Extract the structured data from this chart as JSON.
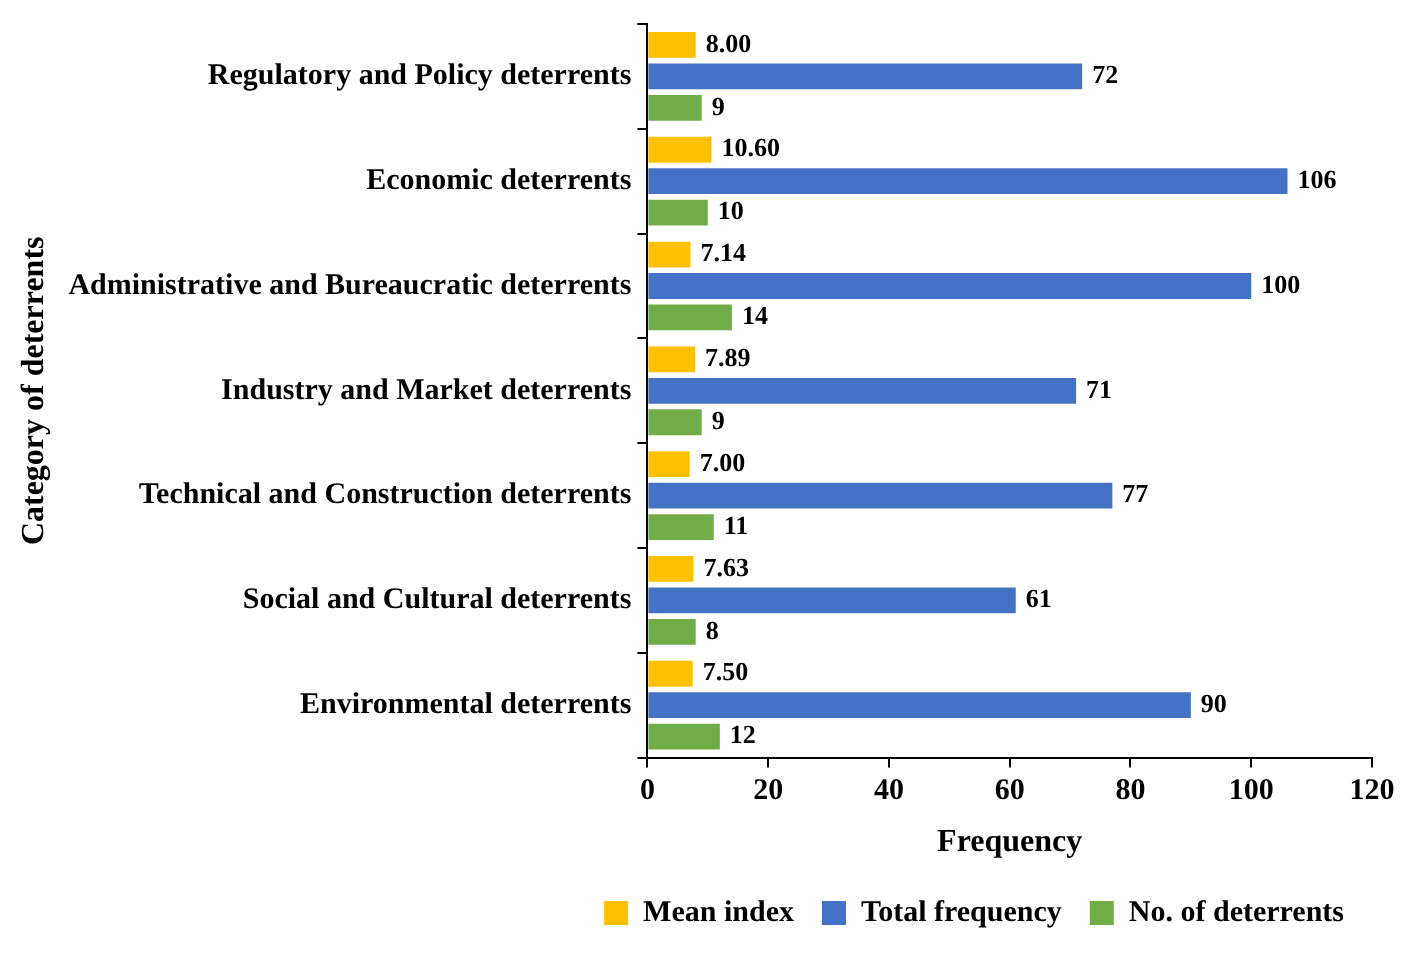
{
  "chart_data": {
    "type": "bar",
    "orientation": "horizontal",
    "xlabel": "Frequency",
    "ylabel": "Category of deterrents",
    "categories": [
      "Regulatory and Policy deterrents",
      "Economic deterrents",
      "Administrative and Bureaucratic deterrents",
      "Industry and Market deterrents",
      "Technical and Construction deterrents",
      "Social and Cultural deterrents",
      "Environmental deterrents"
    ],
    "series": [
      {
        "name": "Mean index",
        "color": "#ffc000",
        "values": [
          8,
          10.6,
          7.14,
          7.89,
          7,
          7.63,
          7.5
        ],
        "value_labels": [
          "8.00",
          "10.60",
          "7.14",
          "7.89",
          "7.00",
          "7.63",
          "7.50"
        ]
      },
      {
        "name": "Total frequency",
        "color": "#4472c4",
        "values": [
          72,
          106,
          100,
          71,
          77,
          61,
          90
        ],
        "value_labels": [
          "72",
          "106",
          "100",
          "71",
          "77",
          "61",
          "90"
        ]
      },
      {
        "name": "No. of deterrents",
        "color": "#70ad47",
        "values": [
          9,
          10,
          14,
          9,
          11,
          8,
          12
        ],
        "value_labels": [
          "9",
          "10",
          "14",
          "9",
          "11",
          "8",
          "12"
        ]
      }
    ],
    "xlim": [
      0,
      120
    ],
    "xticks": [
      0,
      20,
      40,
      60,
      80,
      100,
      120
    ],
    "grid": false,
    "legend": "bottom right"
  }
}
